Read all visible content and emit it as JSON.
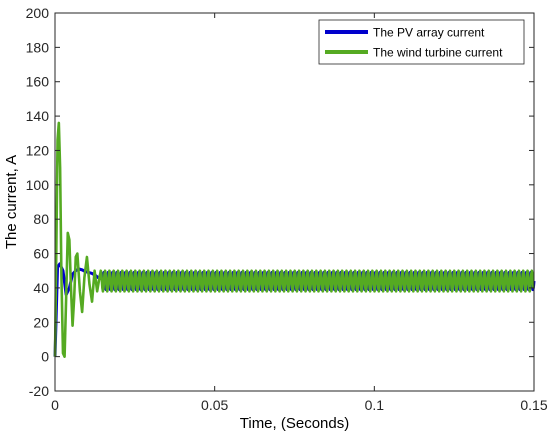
{
  "chart_data": {
    "type": "line",
    "title": "",
    "xlabel": "Time, (Seconds)",
    "ylabel": "The current, A",
    "xlim": [
      0,
      0.15
    ],
    "ylim": [
      -20,
      200
    ],
    "x_ticks": [
      0,
      0.05,
      0.1,
      0.15
    ],
    "x_tick_labels": [
      "0",
      "0.05",
      "0.1",
      "0.15"
    ],
    "y_ticks": [
      -20,
      0,
      20,
      40,
      60,
      80,
      100,
      120,
      140,
      160,
      180,
      200
    ],
    "y_tick_labels": [
      "-20",
      "0",
      "20",
      "40",
      "60",
      "80",
      "100",
      "120",
      "140",
      "160",
      "180",
      "200"
    ],
    "grid": false,
    "legend_position": "top-right",
    "series": [
      {
        "name": "The PV array current",
        "color": "#0000cc",
        "x": [
          0,
          0.0008,
          0.0015,
          0.0025,
          0.0035,
          0.0045,
          0.0055,
          0.0065,
          0.0075,
          0.0085,
          0.0095,
          0.0105,
          0.0115,
          0.0125,
          0.0135,
          0.015
        ],
        "y": [
          0,
          52,
          54,
          50,
          36,
          40,
          48,
          50,
          51,
          50.5,
          49.5,
          49,
          48.5,
          47.5,
          46,
          45
        ],
        "steady_state": {
          "from": 0.015,
          "to": 0.15,
          "mean": 44,
          "amplitude": 5,
          "period": 0.00135
        }
      },
      {
        "name": "The wind turbine current",
        "color": "#55aa22",
        "x": [
          0,
          0.0004,
          0.0008,
          0.0012,
          0.0016,
          0.002,
          0.0025,
          0.003,
          0.0035,
          0.004,
          0.0045,
          0.005,
          0.0055,
          0.006,
          0.0065,
          0.007,
          0.0078,
          0.0085,
          0.0092,
          0.01,
          0.0108,
          0.0116,
          0.0124,
          0.0132,
          0.014
        ],
        "y": [
          0,
          60,
          126,
          136,
          110,
          48,
          2,
          0,
          35,
          72,
          68,
          40,
          18,
          34,
          58,
          60,
          38,
          26,
          46,
          58,
          42,
          32,
          50,
          38,
          47
        ],
        "steady_state": {
          "from": 0.014,
          "to": 0.15,
          "mean": 44,
          "amplitude": 6,
          "period": 0.00135
        }
      }
    ]
  }
}
